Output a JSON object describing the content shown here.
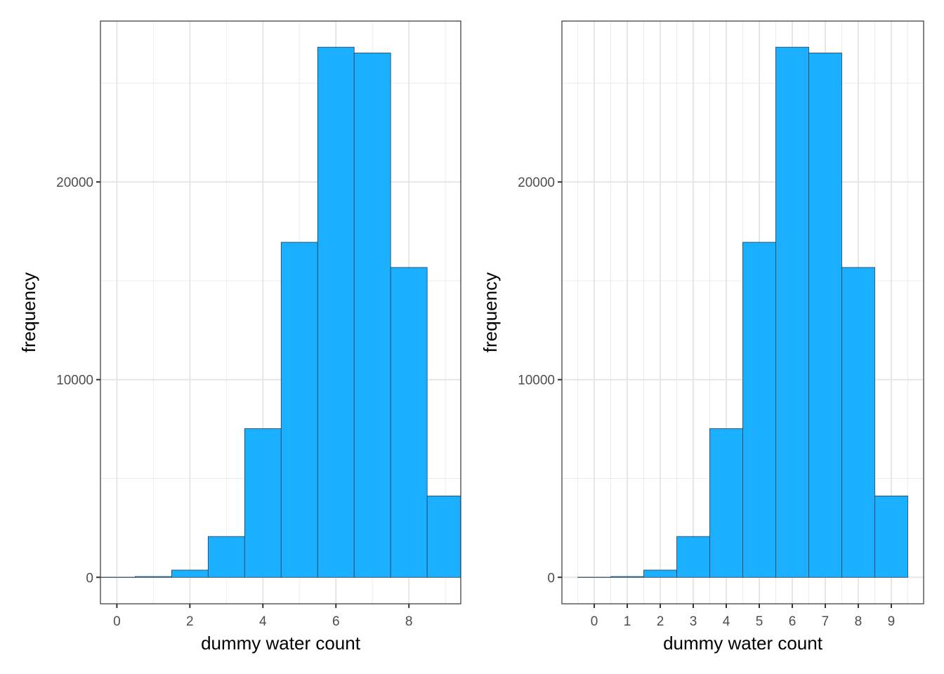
{
  "chart_data": [
    {
      "type": "bar",
      "xlabel": "dummy water count",
      "ylabel": "frequency",
      "x": [
        0,
        1,
        2,
        3,
        4,
        5,
        6,
        7,
        8,
        9
      ],
      "values": [
        5,
        40,
        365,
        2065,
        7520,
        16950,
        26820,
        26525,
        15675,
        4115
      ],
      "xlim": [
        -0.45,
        9.42
      ],
      "ylim": [
        -1340,
        28140
      ],
      "xticks": [
        "0",
        "2",
        "4",
        "6",
        "8"
      ],
      "xtick_values": [
        0,
        2,
        4,
        6,
        8
      ],
      "xminor": [
        1,
        3,
        5,
        7,
        9
      ],
      "yticks": [
        "0",
        "10000",
        "20000"
      ],
      "ytick_values": [
        0,
        10000,
        20000
      ],
      "yminor": [
        5000,
        15000,
        25000
      ],
      "grid": true,
      "bar_color": "#1AB0FF",
      "bar_edge_color": "#1F3F55"
    },
    {
      "type": "bar",
      "xlabel": "dummy water count",
      "ylabel": "frequency",
      "x": [
        0,
        1,
        2,
        3,
        4,
        5,
        6,
        7,
        8,
        9
      ],
      "values": [
        5,
        40,
        365,
        2065,
        7520,
        16950,
        26820,
        26525,
        15675,
        4115
      ],
      "xlim": [
        -0.98,
        9.98
      ],
      "ylim": [
        -1340,
        28140
      ],
      "xticks": [
        "0",
        "1",
        "2",
        "3",
        "4",
        "5",
        "6",
        "7",
        "8",
        "9"
      ],
      "xtick_values": [
        0,
        1,
        2,
        3,
        4,
        5,
        6,
        7,
        8,
        9
      ],
      "xminor": [
        -0.5,
        0.5,
        1.5,
        2.5,
        3.5,
        4.5,
        5.5,
        6.5,
        7.5,
        8.5,
        9.5
      ],
      "yticks": [
        "0",
        "10000",
        "20000"
      ],
      "ytick_values": [
        0,
        10000,
        20000
      ],
      "yminor": [
        5000,
        15000,
        25000
      ],
      "grid": true,
      "bar_color": "#1AB0FF",
      "bar_edge_color": "#1F3F55"
    }
  ]
}
